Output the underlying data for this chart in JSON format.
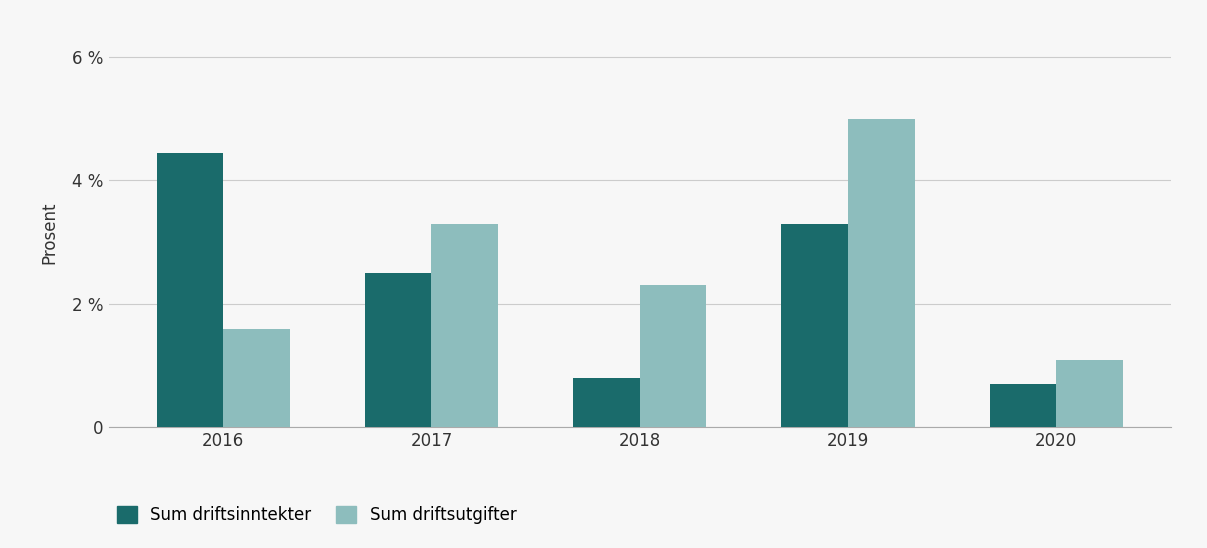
{
  "years": [
    "2016",
    "2017",
    "2018",
    "2019",
    "2020"
  ],
  "driftsinntekter": [
    4.45,
    2.5,
    0.8,
    3.3,
    0.7
  ],
  "driftsutgifter": [
    1.6,
    3.3,
    2.3,
    5.0,
    1.1
  ],
  "color_inntekter": "#1a6b6b",
  "color_utgifter": "#8dbdbd",
  "ylabel": "Prosent",
  "ylim": [
    0,
    6.3
  ],
  "yticks": [
    0,
    2,
    4,
    6
  ],
  "ytick_labels": [
    "0",
    "2 %",
    "4 %",
    "6 %"
  ],
  "legend_label_1": "Sum driftsinntekter",
  "legend_label_2": "Sum driftsutgifter",
  "bar_width": 0.32,
  "background_color": "#f7f7f7",
  "grid_color": "#cccccc",
  "spine_color": "#aaaaaa"
}
